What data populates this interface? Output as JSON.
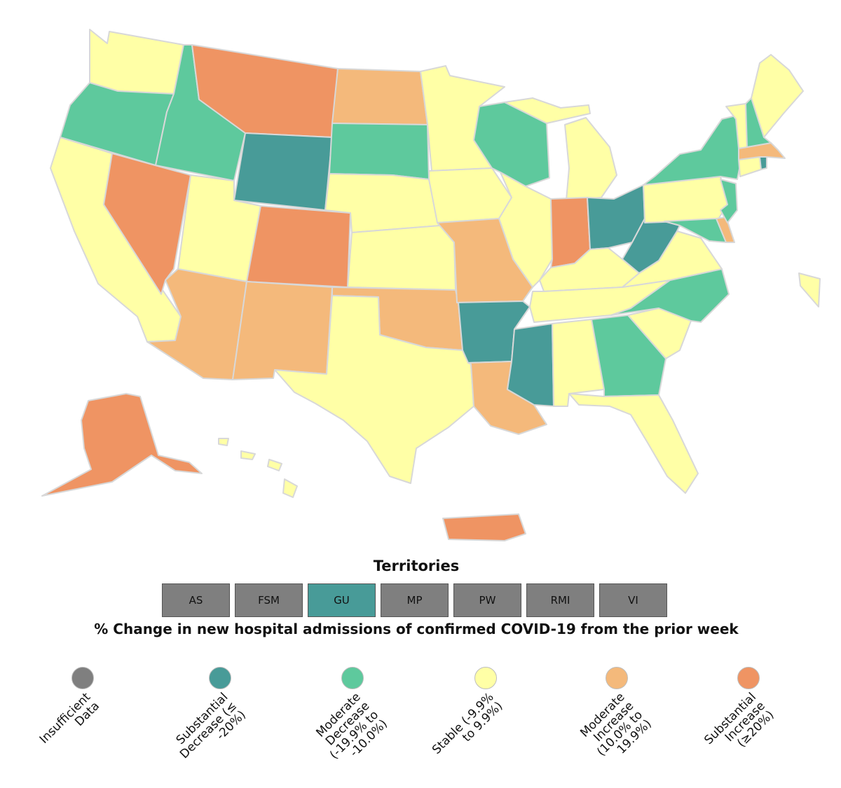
{
  "colors": {
    "insufficient": "#7f7f7f",
    "substantial_decrease": "#489b98",
    "moderate_decrease": "#5ec99d",
    "stable": "#ffffa6",
    "moderate_increase": "#f4b97b",
    "substantial_increase": "#ef9463"
  },
  "map": {
    "states": [
      {
        "name": "Washington",
        "category": "stable"
      },
      {
        "name": "Oregon",
        "category": "moderate_decrease"
      },
      {
        "name": "California",
        "category": "stable"
      },
      {
        "name": "Nevada",
        "category": "substantial_increase"
      },
      {
        "name": "Idaho",
        "category": "moderate_decrease"
      },
      {
        "name": "Montana",
        "category": "substantial_increase"
      },
      {
        "name": "Wyoming",
        "category": "substantial_decrease"
      },
      {
        "name": "Utah",
        "category": "stable"
      },
      {
        "name": "Arizona",
        "category": "moderate_increase"
      },
      {
        "name": "Colorado",
        "category": "substantial_increase"
      },
      {
        "name": "New Mexico",
        "category": "moderate_increase"
      },
      {
        "name": "North Dakota",
        "category": "moderate_increase"
      },
      {
        "name": "South Dakota",
        "category": "moderate_decrease"
      },
      {
        "name": "Nebraska",
        "category": "stable"
      },
      {
        "name": "Kansas",
        "category": "stable"
      },
      {
        "name": "Oklahoma",
        "category": "moderate_increase"
      },
      {
        "name": "Texas",
        "category": "stable"
      },
      {
        "name": "Minnesota",
        "category": "stable"
      },
      {
        "name": "Iowa",
        "category": "stable"
      },
      {
        "name": "Missouri",
        "category": "moderate_increase"
      },
      {
        "name": "Arkansas",
        "category": "substantial_decrease"
      },
      {
        "name": "Louisiana",
        "category": "moderate_increase"
      },
      {
        "name": "Wisconsin",
        "category": "moderate_decrease"
      },
      {
        "name": "Illinois",
        "category": "stable"
      },
      {
        "name": "Michigan",
        "category": "stable"
      },
      {
        "name": "Indiana",
        "category": "substantial_increase"
      },
      {
        "name": "Ohio",
        "category": "substantial_decrease"
      },
      {
        "name": "Kentucky",
        "category": "stable"
      },
      {
        "name": "Tennessee",
        "category": "stable"
      },
      {
        "name": "Mississippi",
        "category": "substantial_decrease"
      },
      {
        "name": "Alabama",
        "category": "stable"
      },
      {
        "name": "Georgia",
        "category": "moderate_decrease"
      },
      {
        "name": "Florida",
        "category": "stable"
      },
      {
        "name": "South Carolina",
        "category": "stable"
      },
      {
        "name": "North Carolina",
        "category": "moderate_decrease"
      },
      {
        "name": "Virginia",
        "category": "stable"
      },
      {
        "name": "West Virginia",
        "category": "substantial_decrease"
      },
      {
        "name": "Maryland",
        "category": "moderate_decrease"
      },
      {
        "name": "Delaware",
        "category": "moderate_increase"
      },
      {
        "name": "Pennsylvania",
        "category": "stable"
      },
      {
        "name": "New Jersey",
        "category": "moderate_decrease"
      },
      {
        "name": "New York",
        "category": "moderate_decrease"
      },
      {
        "name": "Connecticut",
        "category": "stable"
      },
      {
        "name": "Rhode Island",
        "category": "substantial_decrease"
      },
      {
        "name": "Massachusetts",
        "category": "moderate_increase"
      },
      {
        "name": "Vermont",
        "category": "stable"
      },
      {
        "name": "New Hampshire",
        "category": "moderate_decrease"
      },
      {
        "name": "Maine",
        "category": "stable"
      },
      {
        "name": "Alaska",
        "category": "substantial_increase"
      },
      {
        "name": "Hawaii",
        "category": "stable"
      },
      {
        "name": "Puerto Rico",
        "category": "substantial_increase"
      },
      {
        "name": "New York City",
        "category": "stable"
      }
    ]
  },
  "territories": {
    "title": "Territories",
    "items": [
      {
        "label": "AS",
        "category": "insufficient"
      },
      {
        "label": "FSM",
        "category": "insufficient"
      },
      {
        "label": "GU",
        "category": "substantial_decrease"
      },
      {
        "label": "MP",
        "category": "insufficient"
      },
      {
        "label": "PW",
        "category": "insufficient"
      },
      {
        "label": "RMI",
        "category": "insufficient"
      },
      {
        "label": "VI",
        "category": "insufficient"
      }
    ]
  },
  "legend": {
    "title": "% Change in new hospital admissions of confirmed COVID-19 from the prior week",
    "items": [
      {
        "category": "insufficient",
        "label": "Insufficient\nData"
      },
      {
        "category": "substantial_decrease",
        "label": "Substantial\nDecrease (≤\n-20%)"
      },
      {
        "category": "moderate_decrease",
        "label": "Moderate\nDecrease\n(-19.9% to\n-10.0%)"
      },
      {
        "category": "stable",
        "label": "Stable (-9.9%\nto 9.9%)"
      },
      {
        "category": "moderate_increase",
        "label": "Moderate\nIncrease\n(10.0% to\n19.9%)"
      },
      {
        "category": "substantial_increase",
        "label": "Substantial\nIncrease\n(≥20%)"
      }
    ]
  }
}
